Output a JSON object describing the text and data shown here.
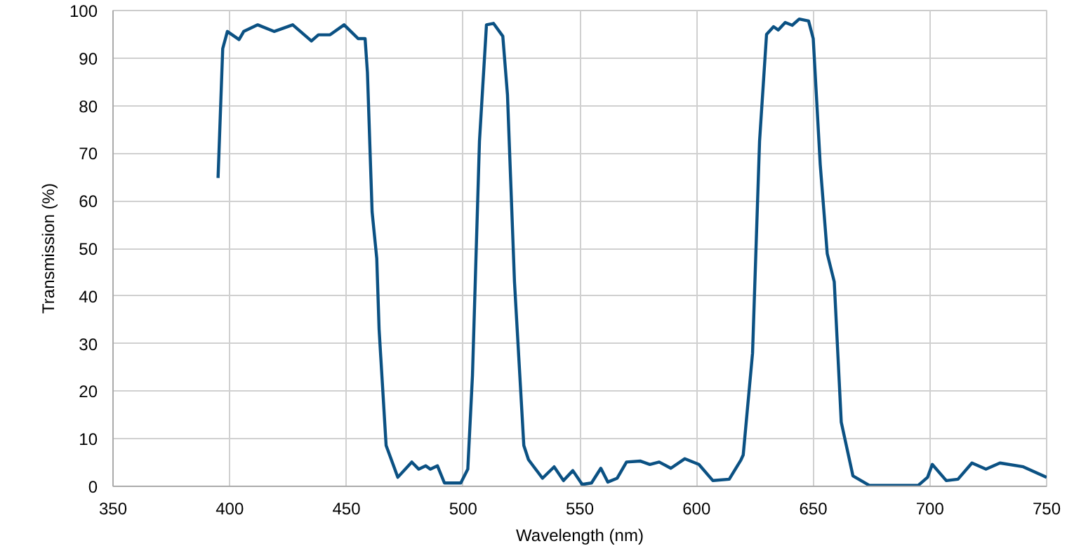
{
  "chart_data": {
    "type": "line",
    "xlabel": "Wavelength (nm)",
    "ylabel": "Transmission (%)",
    "xlim": [
      350,
      750
    ],
    "xticks": [
      350,
      400,
      450,
      500,
      550,
      600,
      650,
      700,
      750
    ],
    "ylim": [
      0,
      100
    ],
    "yticks": [
      0,
      10,
      20,
      30,
      40,
      50,
      60,
      70,
      80,
      90,
      100
    ],
    "grid": true,
    "marker": "none",
    "line_style": "solid",
    "series": [
      {
        "color": "#0b5183",
        "x": [
          395,
          397,
          399,
          404,
          406,
          412,
          419,
          427,
          435,
          438,
          443,
          449,
          455,
          458,
          459,
          461,
          463,
          464,
          467,
          472,
          478,
          481,
          484,
          486,
          489,
          492,
          499,
          502,
          504,
          507,
          510,
          513,
          517,
          519,
          522,
          526,
          528,
          534,
          539,
          543,
          547,
          551,
          555,
          559,
          562,
          566,
          570,
          576,
          580,
          584,
          589,
          595,
          601,
          607,
          614,
          619,
          620,
          624,
          627,
          630,
          633,
          635,
          638,
          641,
          644,
          648,
          650,
          653,
          656,
          659,
          662,
          667,
          674,
          695,
          699,
          701,
          707,
          712,
          718,
          724,
          730,
          740,
          750
        ],
        "values": [
          64.8,
          92,
          95.6,
          93.9,
          95.6,
          97,
          95.6,
          97,
          93.6,
          94.9,
          94.9,
          97,
          94.1,
          94.1,
          87,
          57.7,
          47.9,
          33,
          8.6,
          1.9,
          5.1,
          3.6,
          4.3,
          3.6,
          4.3,
          0.7,
          0.7,
          3.6,
          23.3,
          72.5,
          97,
          97.3,
          94.6,
          82.3,
          43,
          8.6,
          5.6,
          1.7,
          4.1,
          1.2,
          3.3,
          0.4,
          0.7,
          3.8,
          0.9,
          1.7,
          5.1,
          5.3,
          4.6,
          5.1,
          3.8,
          5.8,
          4.6,
          1.2,
          1.5,
          5.5,
          6.6,
          28,
          72.5,
          95,
          96.6,
          95.9,
          97.5,
          96.9,
          98.2,
          97.8,
          94.1,
          67.6,
          48.9,
          43,
          13.5,
          2.2,
          0.2,
          0.2,
          1.9,
          4.6,
          1.2,
          1.5,
          4.9,
          3.6,
          4.9,
          4.1,
          1.9
        ]
      }
    ]
  }
}
